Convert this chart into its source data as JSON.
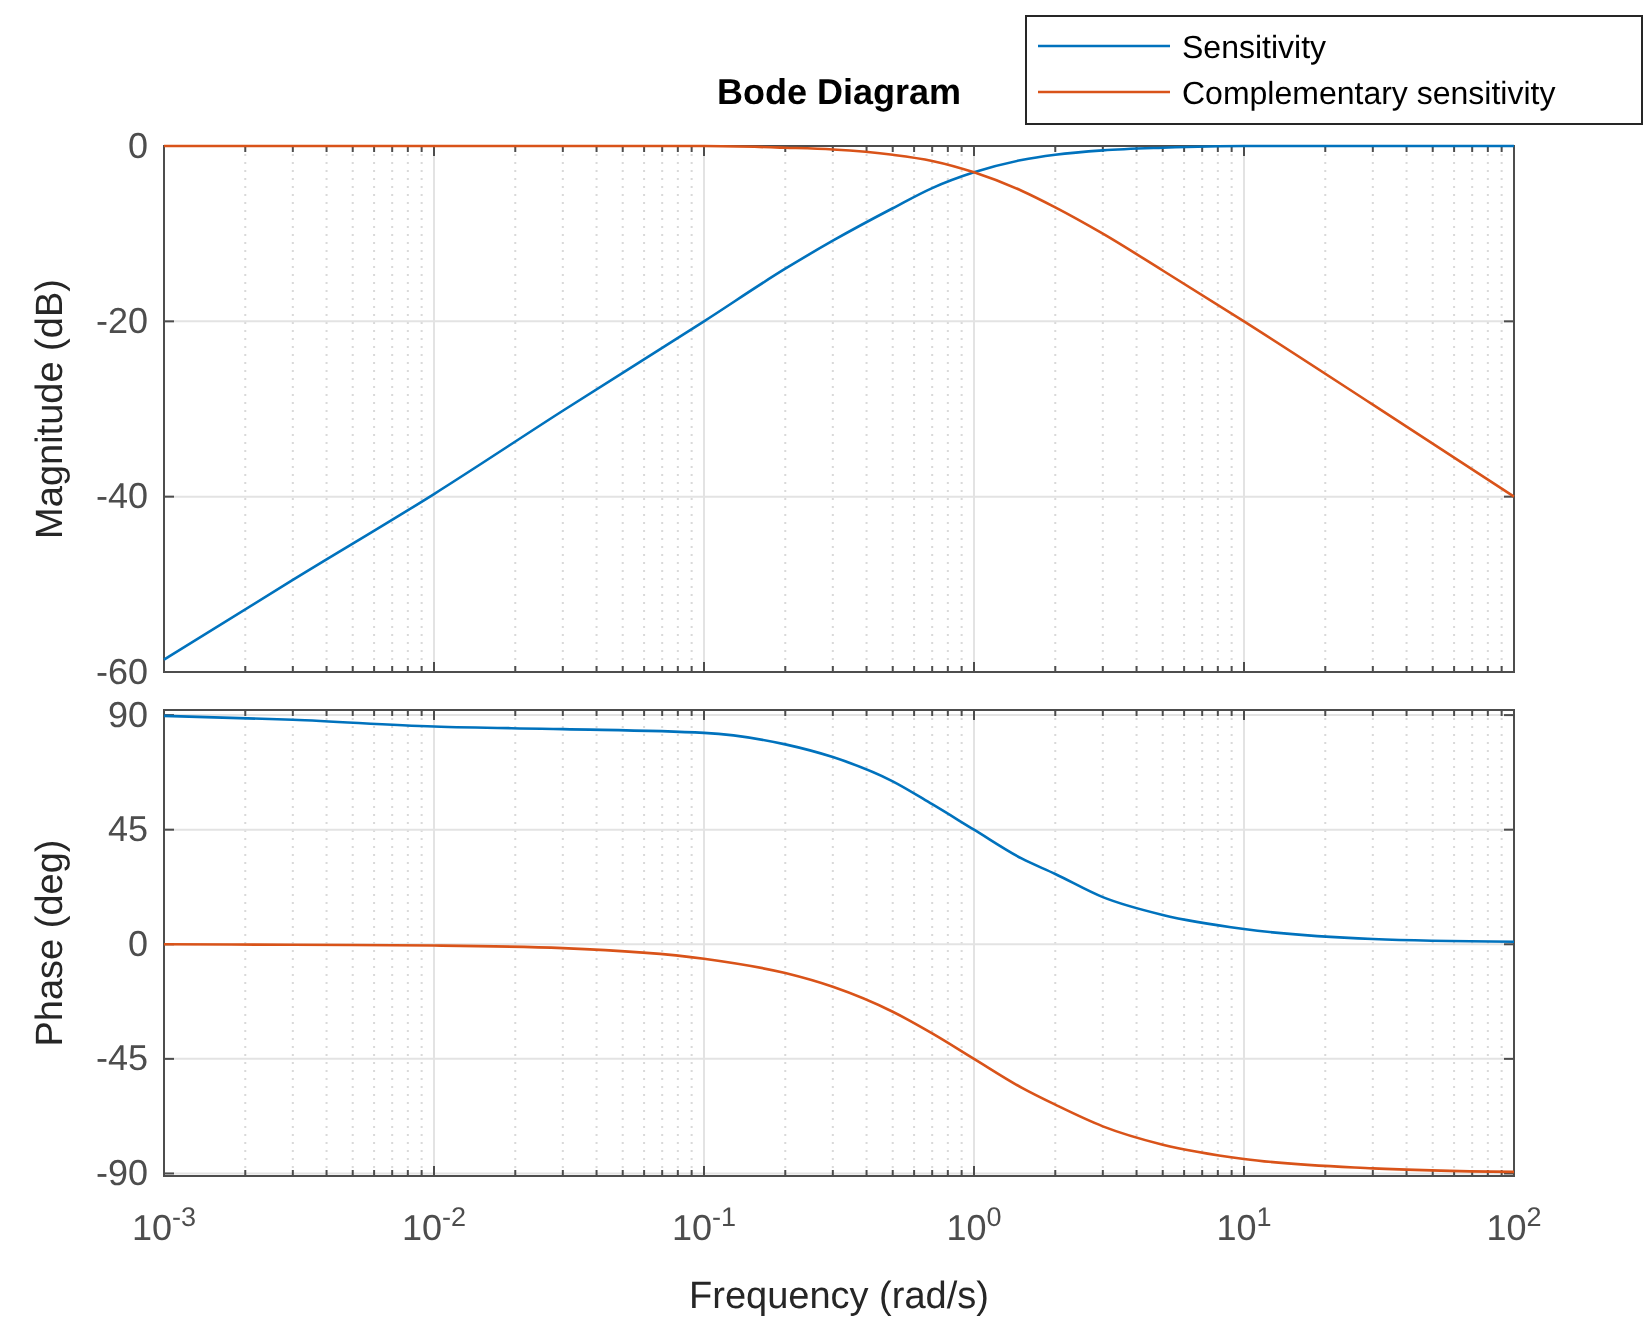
{
  "chart_data": [
    {
      "type": "line",
      "title": "Bode Diagram",
      "ylabel": "Magnitude (dB)",
      "log": "x",
      "grid": true,
      "legend": "top right",
      "tick_labels": "y",
      "line_style": "solid",
      "x": [
        0.001,
        0.003,
        0.01,
        0.03,
        0.1,
        0.2,
        0.3,
        0.5,
        0.7,
        1,
        1.5,
        2,
        3,
        5,
        10,
        30,
        100
      ],
      "xlim": [
        0.001,
        100
      ],
      "xticks": [
        {
          "value": 0.001,
          "label": null
        },
        {
          "value": 0.01,
          "label": null
        },
        {
          "value": 0.1,
          "label": null
        },
        {
          "value": 1,
          "label": null
        },
        {
          "value": 10,
          "label": null
        },
        {
          "value": 100,
          "label": null
        }
      ],
      "ylim": [
        -60,
        0
      ],
      "yticks": [
        -60,
        -40,
        -20,
        0
      ],
      "series": [
        {
          "name": "Sensitivity",
          "color": "#0072bd",
          "values": [
            -58.6,
            -49.5,
            -39.7,
            -30.2,
            -20,
            -14,
            -10.8,
            -7.1,
            -4.8,
            -3,
            -1.6,
            -1,
            -0.5,
            -0.2,
            0,
            0,
            0
          ]
        },
        {
          "name": "Complementary sensitivity",
          "color": "#d95319",
          "values": [
            0,
            0,
            0,
            0,
            0,
            -0.2,
            -0.4,
            -1,
            -1.7,
            -3,
            -5.1,
            -7,
            -10,
            -14.2,
            -20,
            -29.5,
            -40
          ]
        }
      ]
    },
    {
      "type": "line",
      "xlabel": "Frequency  (rad/s)",
      "ylabel": "Phase (deg)",
      "log": "x",
      "grid": true,
      "line_style": "solid",
      "x": [
        0.001,
        0.003,
        0.01,
        0.03,
        0.1,
        0.2,
        0.3,
        0.5,
        0.7,
        1,
        1.5,
        2,
        3,
        5,
        10,
        30,
        100
      ],
      "xlim": [
        0.001,
        100
      ],
      "xticks": [
        {
          "value": 0.001,
          "label": "10$^{-3}$"
        },
        {
          "value": 0.01,
          "label": "10$^{-2}$"
        },
        {
          "value": 0.1,
          "label": "10$^{-1}$"
        },
        {
          "value": 1,
          "label": "10$^{0}$"
        },
        {
          "value": 10,
          "label": "10$^{1}$"
        },
        {
          "value": 100,
          "label": "10$^{2}$"
        }
      ],
      "ylim": [
        -91,
        92
      ],
      "yticks": [
        -90,
        -45,
        0,
        45,
        90
      ],
      "series": [
        {
          "color": "#0072bd",
          "values": [
            89.7,
            88.2,
            85.5,
            84.5,
            83,
            78.5,
            73.5,
            64,
            55,
            45,
            33.7,
            27.6,
            18.5,
            11.5,
            6,
            2.1,
            1
          ]
        },
        {
          "color": "#d95319",
          "values": [
            0,
            -0.2,
            -0.5,
            -1.5,
            -5.7,
            -11.3,
            -16.7,
            -26.5,
            -35,
            -45,
            -56.3,
            -63,
            -71.5,
            -78.7,
            -84.3,
            -88,
            -89.4
          ]
        }
      ]
    }
  ]
}
